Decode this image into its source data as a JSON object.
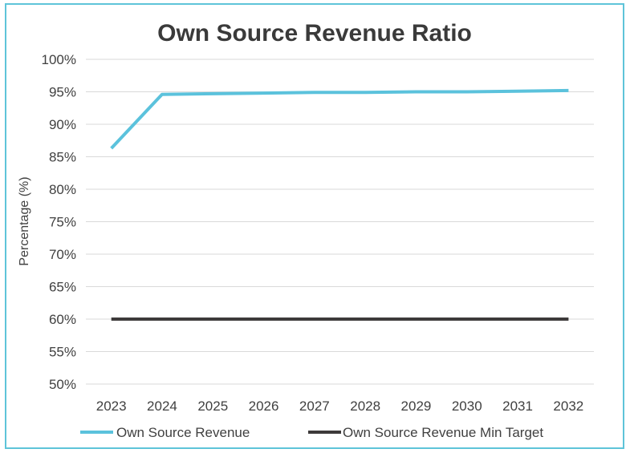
{
  "chart_data": {
    "type": "line",
    "title": "Own Source Revenue Ratio",
    "xlabel": "",
    "ylabel": "Percentage (%)",
    "categories": [
      "2023",
      "2024",
      "2025",
      "2026",
      "2027",
      "2028",
      "2029",
      "2030",
      "2031",
      "2032"
    ],
    "y_ticks": [
      "100%",
      "95%",
      "90%",
      "85%",
      "80%",
      "75%",
      "70%",
      "65%",
      "60%",
      "55%",
      "50%"
    ],
    "ylim": [
      50,
      100
    ],
    "grid": true,
    "legend_position": "bottom",
    "series": [
      {
        "name": "Own Source Revenue",
        "color": "#5bc2dc",
        "values": [
          86.3,
          94.6,
          94.7,
          94.8,
          94.9,
          94.9,
          95.0,
          95.0,
          95.1,
          95.2
        ]
      },
      {
        "name": "Own Source Revenue Min Target",
        "color": "#3d3a3a",
        "values": [
          60,
          60,
          60,
          60,
          60,
          60,
          60,
          60,
          60,
          60
        ]
      }
    ]
  }
}
